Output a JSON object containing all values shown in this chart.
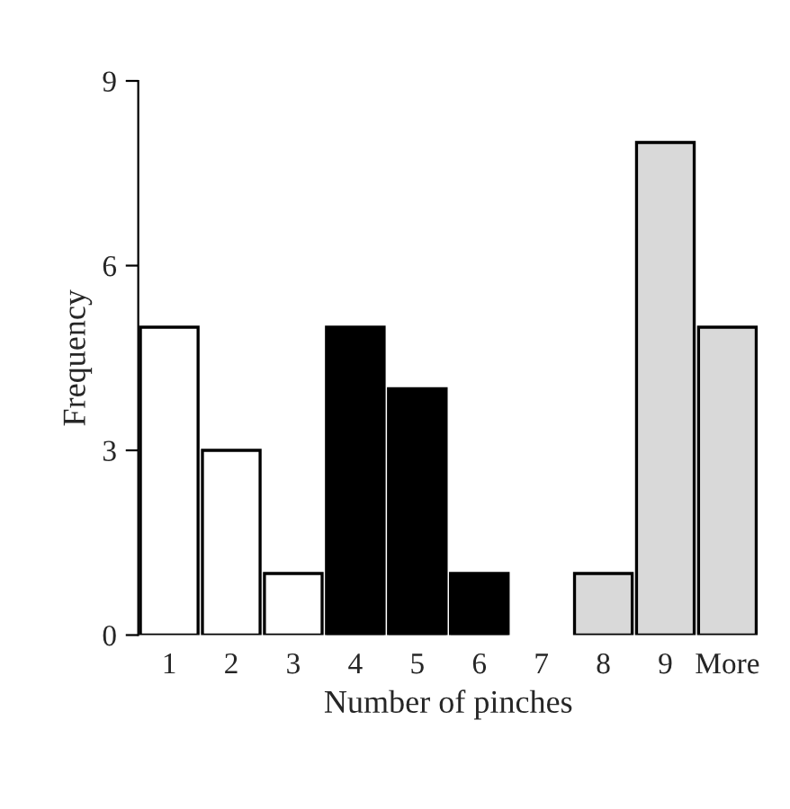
{
  "chart_data": {
    "type": "bar",
    "xlabel": "Number of pinches",
    "ylabel": "Frequency",
    "categories": [
      "1",
      "2",
      "3",
      "4",
      "5",
      "6",
      "7",
      "8",
      "9",
      "More"
    ],
    "values": [
      5,
      3,
      1,
      5,
      4,
      1,
      0,
      1,
      8,
      5
    ],
    "colors": [
      "#ffffff",
      "#ffffff",
      "#ffffff",
      "#000000",
      "#000000",
      "#000000",
      "#d9d9d9",
      "#d9d9d9",
      "#d9d9d9",
      "#d9d9d9"
    ],
    "ylim": [
      0,
      9
    ],
    "yticks": [
      0,
      3,
      6,
      9
    ],
    "grid": false,
    "legend": false
  }
}
